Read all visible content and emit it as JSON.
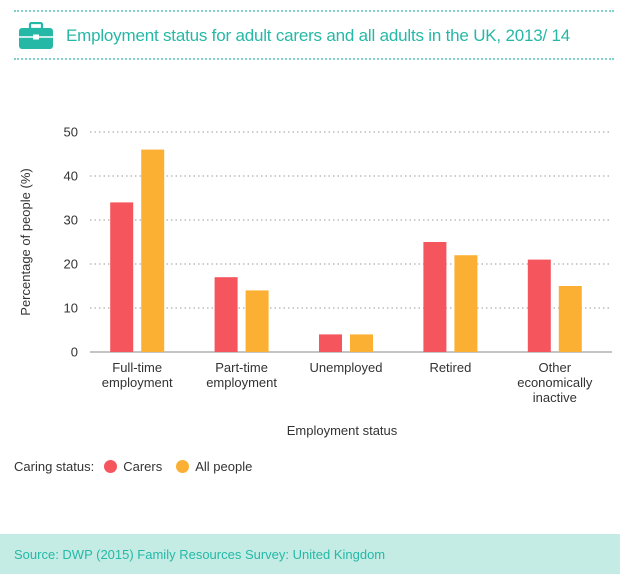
{
  "header": {
    "title": "Employment status for adult carers and all adults in the UK, 2013/ 14"
  },
  "chart_data": {
    "type": "bar",
    "title": "Employment status for adult carers and all adults in the UK, 2013/ 14",
    "xlabel": "Employment status",
    "ylabel": "Percentage of people (%)",
    "ylim": [
      0,
      50
    ],
    "yticks": [
      0,
      10,
      20,
      30,
      40,
      50
    ],
    "grid": "horizontal dotted",
    "categories": [
      [
        "Full-time",
        "employment"
      ],
      [
        "Part-time",
        "employment"
      ],
      [
        "Unemployed"
      ],
      [
        "Retired"
      ],
      [
        "Other",
        "economically",
        "inactive"
      ]
    ],
    "series": [
      {
        "name": "Carers",
        "color": "#f5555d",
        "values": [
          34,
          17,
          4,
          25,
          21
        ]
      },
      {
        "name": "All people",
        "color": "#fbb034",
        "values": [
          46,
          14,
          4,
          22,
          15
        ]
      }
    ],
    "legend_position": "bottom-left"
  },
  "legend": {
    "label": "Caring status:",
    "items": [
      "Carers",
      "All people"
    ]
  },
  "footer": {
    "source": "Source: DWP (2015) Family Resources Survey: United Kingdom"
  },
  "colors": {
    "accent": "#26b8a6",
    "footer_bg": "#c4ece5",
    "carers": "#f5555d",
    "all_people": "#fbb034"
  },
  "icons": {
    "header": "briefcase-icon"
  }
}
